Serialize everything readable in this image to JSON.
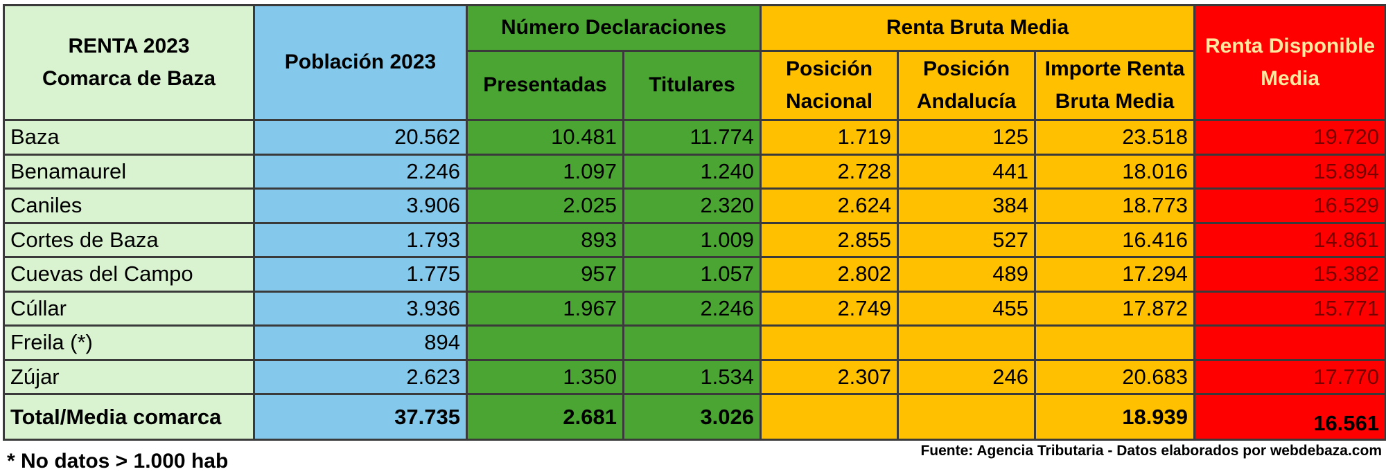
{
  "table": {
    "title_line1": "RENTA 2023",
    "title_line2": "Comarca de Baza",
    "headers": {
      "poblacion": "Población 2023",
      "declaraciones": "Número Declaraciones",
      "presentadas": "Presentadas",
      "titulares": "Titulares",
      "renta_bruta": "Renta Bruta Media",
      "pos_nacional_1": "Posición",
      "pos_nacional_2": "Nacional",
      "pos_andalucia_1": "Posición",
      "pos_andalucia_2": "Andalucía",
      "importe_1": "Importe Renta",
      "importe_2": "Bruta Media",
      "renta_disp_1": "Renta Disponible",
      "renta_disp_2": "Media"
    },
    "rows": [
      {
        "name": "Baza",
        "poblacion": "20.562",
        "presentadas": "10.481",
        "titulares": "11.774",
        "pos_nacional": "1.719",
        "pos_andalucia": "125",
        "importe": "23.518",
        "renta_disp": "19.720"
      },
      {
        "name": "Benamaurel",
        "poblacion": "2.246",
        "presentadas": "1.097",
        "titulares": "1.240",
        "pos_nacional": "2.728",
        "pos_andalucia": "441",
        "importe": "18.016",
        "renta_disp": "15.894"
      },
      {
        "name": "Caniles",
        "poblacion": "3.906",
        "presentadas": "2.025",
        "titulares": "2.320",
        "pos_nacional": "2.624",
        "pos_andalucia": "384",
        "importe": "18.773",
        "renta_disp": "16.529"
      },
      {
        "name": "Cortes de Baza",
        "poblacion": "1.793",
        "presentadas": "893",
        "titulares": "1.009",
        "pos_nacional": "2.855",
        "pos_andalucia": "527",
        "importe": "16.416",
        "renta_disp": "14.861"
      },
      {
        "name": "Cuevas del Campo",
        "poblacion": "1.775",
        "presentadas": "957",
        "titulares": "1.057",
        "pos_nacional": "2.802",
        "pos_andalucia": "489",
        "importe": "17.294",
        "renta_disp": "15.382"
      },
      {
        "name": "Cúllar",
        "poblacion": "3.936",
        "presentadas": "1.967",
        "titulares": "2.246",
        "pos_nacional": "2.749",
        "pos_andalucia": "455",
        "importe": "17.872",
        "renta_disp": "15.771"
      },
      {
        "name": "Freila (*)",
        "poblacion": "894",
        "presentadas": "",
        "titulares": "",
        "pos_nacional": "",
        "pos_andalucia": "",
        "importe": "",
        "renta_disp": ""
      },
      {
        "name": "Zújar",
        "poblacion": "2.623",
        "presentadas": "1.350",
        "titulares": "1.534",
        "pos_nacional": "2.307",
        "pos_andalucia": "246",
        "importe": "20.683",
        "renta_disp": "17.770"
      }
    ],
    "total": {
      "name": "Total/Media comarca",
      "poblacion": "37.735",
      "presentadas": "2.681",
      "titulares": "3.026",
      "pos_nacional": "",
      "pos_andalucia": "",
      "importe": "18.939",
      "renta_disp": "16.561"
    }
  },
  "footnote": "* No datos > 1.000 hab",
  "source": "Fuente: Agencia Tributaria - Datos elaborados por webdebaza.com",
  "colors": {
    "title_bg": "#d9f2d0",
    "poblacion_bg": "#84c9eb",
    "declaraciones_bg": "#4aa532",
    "renta_bruta_bg": "#ffc000",
    "renta_disponible_bg": "#ff0000"
  }
}
